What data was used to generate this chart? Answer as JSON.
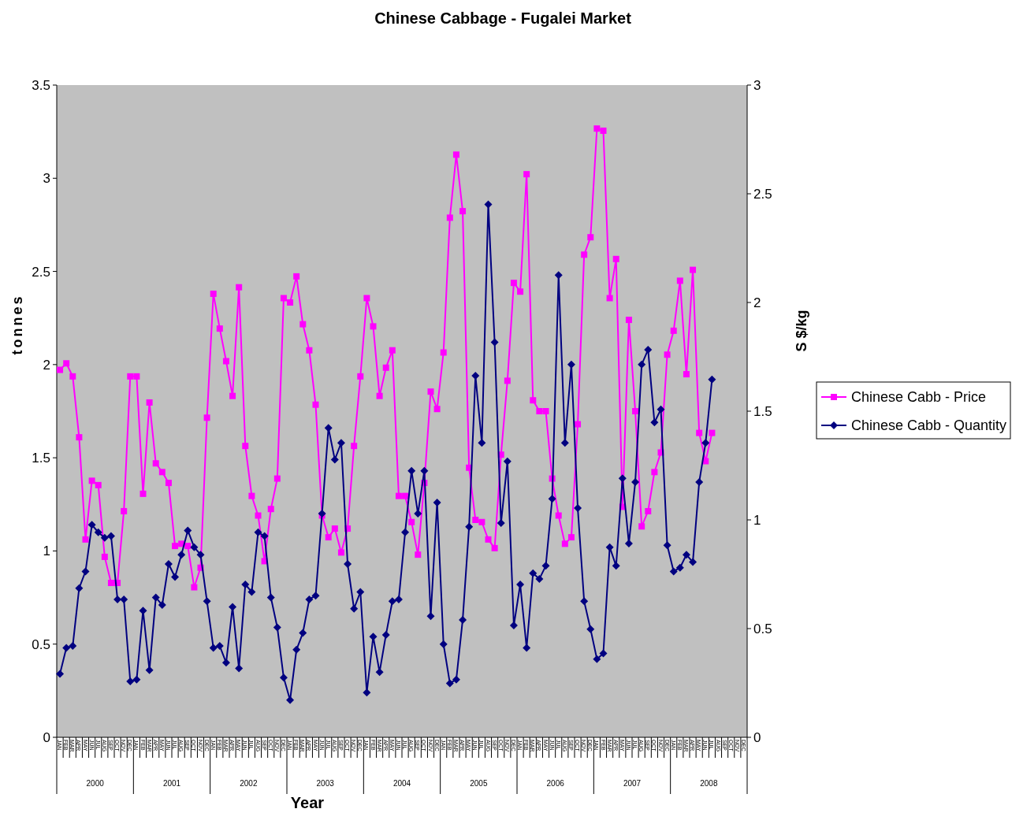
{
  "chart_data": {
    "type": "line",
    "title": "Chinese Cabbage - Fugalei Market",
    "xlabel": "Year",
    "ylabel": "tonnes",
    "y2label": "S $/kg",
    "categories": [
      "JAN",
      "FEB",
      "MAR",
      "APR",
      "MAY",
      "JUN",
      "JUL",
      "AUG",
      "SEP",
      "OCT",
      "NOV",
      "DEC",
      "JAN",
      "FEB",
      "MAR",
      "APR",
      "MAY",
      "JUN",
      "JUL",
      "AUG",
      "SEP",
      "OCT",
      "NOV",
      "DEC",
      "JAN",
      "FEB",
      "MAR",
      "APR",
      "MAY",
      "JUN",
      "JUL",
      "AUG",
      "SEP",
      "OCT",
      "NOV",
      "DEC",
      "JAN",
      "FEB",
      "MAR",
      "APR",
      "MAY",
      "JUN",
      "JUL",
      "AUG",
      "SEP",
      "OCT",
      "NOV",
      "DEC",
      "JAN",
      "FEB",
      "MAR",
      "APR",
      "MAY",
      "JUN",
      "JUL",
      "AUG",
      "SEP",
      "OCT",
      "NOV",
      "DEC",
      "JAN",
      "FEB",
      "MAR",
      "APR",
      "MAY",
      "JUN",
      "JUL",
      "AUG",
      "SEP",
      "OCT",
      "NOV",
      "DEC",
      "JAN",
      "FEB",
      "MAR",
      "APR",
      "MAY",
      "JUN",
      "JUL",
      "AUG",
      "SEP",
      "OCT",
      "NOV",
      "DEC",
      "JAN",
      "FEB",
      "MAR",
      "APR",
      "MAY",
      "JUN",
      "JUL",
      "AUG",
      "SEP",
      "OCT",
      "NOV",
      "DEC",
      "JAN",
      "FEB",
      "MAR",
      "APR",
      "MAY",
      "JUN",
      "JUL",
      "AUG",
      "SEP",
      "OCT",
      "NOV",
      "DEC"
    ],
    "annotations": [
      "2000",
      "2001",
      "2002",
      "2003",
      "2004",
      "2005",
      "2006",
      "2007",
      "2008"
    ],
    "series": [
      {
        "name": "Chinese Cabb - Price",
        "color": "#ff00ff",
        "axis": "y2",
        "marker": "square",
        "values": [
          1.69,
          1.72,
          1.66,
          1.38,
          0.91,
          1.18,
          1.16,
          0.83,
          0.71,
          0.71,
          1.04,
          1.66,
          1.66,
          1.12,
          1.54,
          1.26,
          1.22,
          1.17,
          0.88,
          0.89,
          0.88,
          0.69,
          0.78,
          1.47,
          2.04,
          1.88,
          1.73,
          1.57,
          2.07,
          1.34,
          1.11,
          1.02,
          0.81,
          1.05,
          1.19,
          2.02,
          2.0,
          2.12,
          1.9,
          1.78,
          1.53,
          1.02,
          0.92,
          0.96,
          0.85,
          0.96,
          1.34,
          1.66,
          2.02,
          1.89,
          1.57,
          1.7,
          1.78,
          1.11,
          1.11,
          0.99,
          0.84,
          1.17,
          1.59,
          1.51,
          1.77,
          2.39,
          2.68,
          2.42,
          1.24,
          1.0,
          0.99,
          0.91,
          0.87,
          1.3,
          1.64,
          2.09,
          2.05,
          2.59,
          1.55,
          1.5,
          1.5,
          1.19,
          1.02,
          0.89,
          0.92,
          1.44,
          2.22,
          2.3,
          2.8,
          2.79,
          2.02,
          2.2,
          1.06,
          1.92,
          1.5,
          0.97,
          1.04,
          1.22,
          1.31,
          1.76,
          1.87,
          2.1,
          1.67,
          2.15,
          1.4,
          1.27,
          1.4,
          null,
          null,
          null,
          null,
          null
        ]
      },
      {
        "name": "Chinese Cabb - Quantity",
        "color": "#000080",
        "axis": "y",
        "marker": "diamond",
        "values": [
          0.34,
          0.48,
          0.49,
          0.8,
          0.89,
          1.14,
          1.1,
          1.07,
          1.08,
          0.74,
          0.74,
          0.3,
          0.31,
          0.68,
          0.36,
          0.75,
          0.71,
          0.93,
          0.86,
          0.98,
          1.11,
          1.02,
          0.98,
          0.73,
          0.48,
          0.49,
          0.4,
          0.7,
          0.37,
          0.82,
          0.78,
          1.1,
          1.08,
          0.75,
          0.59,
          0.32,
          0.2,
          0.47,
          0.56,
          0.74,
          0.76,
          1.2,
          1.66,
          1.49,
          1.58,
          0.93,
          0.69,
          0.78,
          0.24,
          0.54,
          0.35,
          0.55,
          0.73,
          0.74,
          1.1,
          1.43,
          1.2,
          1.43,
          0.65,
          1.26,
          0.5,
          0.29,
          0.31,
          0.63,
          1.13,
          1.94,
          1.58,
          2.86,
          2.12,
          1.15,
          1.48,
          0.6,
          0.82,
          0.48,
          0.88,
          0.85,
          0.92,
          1.28,
          2.48,
          1.58,
          2.0,
          1.23,
          0.73,
          0.58,
          0.42,
          0.45,
          1.02,
          0.92,
          1.39,
          1.04,
          1.37,
          2.0,
          2.08,
          1.69,
          1.76,
          1.03,
          0.89,
          0.91,
          0.98,
          0.94,
          1.37,
          1.58,
          1.92,
          null,
          null,
          null,
          null,
          null
        ]
      }
    ],
    "ylim": [
      0,
      3.5
    ],
    "yticks": [
      0,
      0.5,
      1,
      1.5,
      2,
      2.5,
      3,
      3.5
    ],
    "y2lim": [
      0,
      3
    ],
    "y2ticks": [
      0,
      0.5,
      1,
      1.5,
      2,
      2.5,
      3
    ],
    "grid": false,
    "legend": "right",
    "line_style": "solid"
  }
}
